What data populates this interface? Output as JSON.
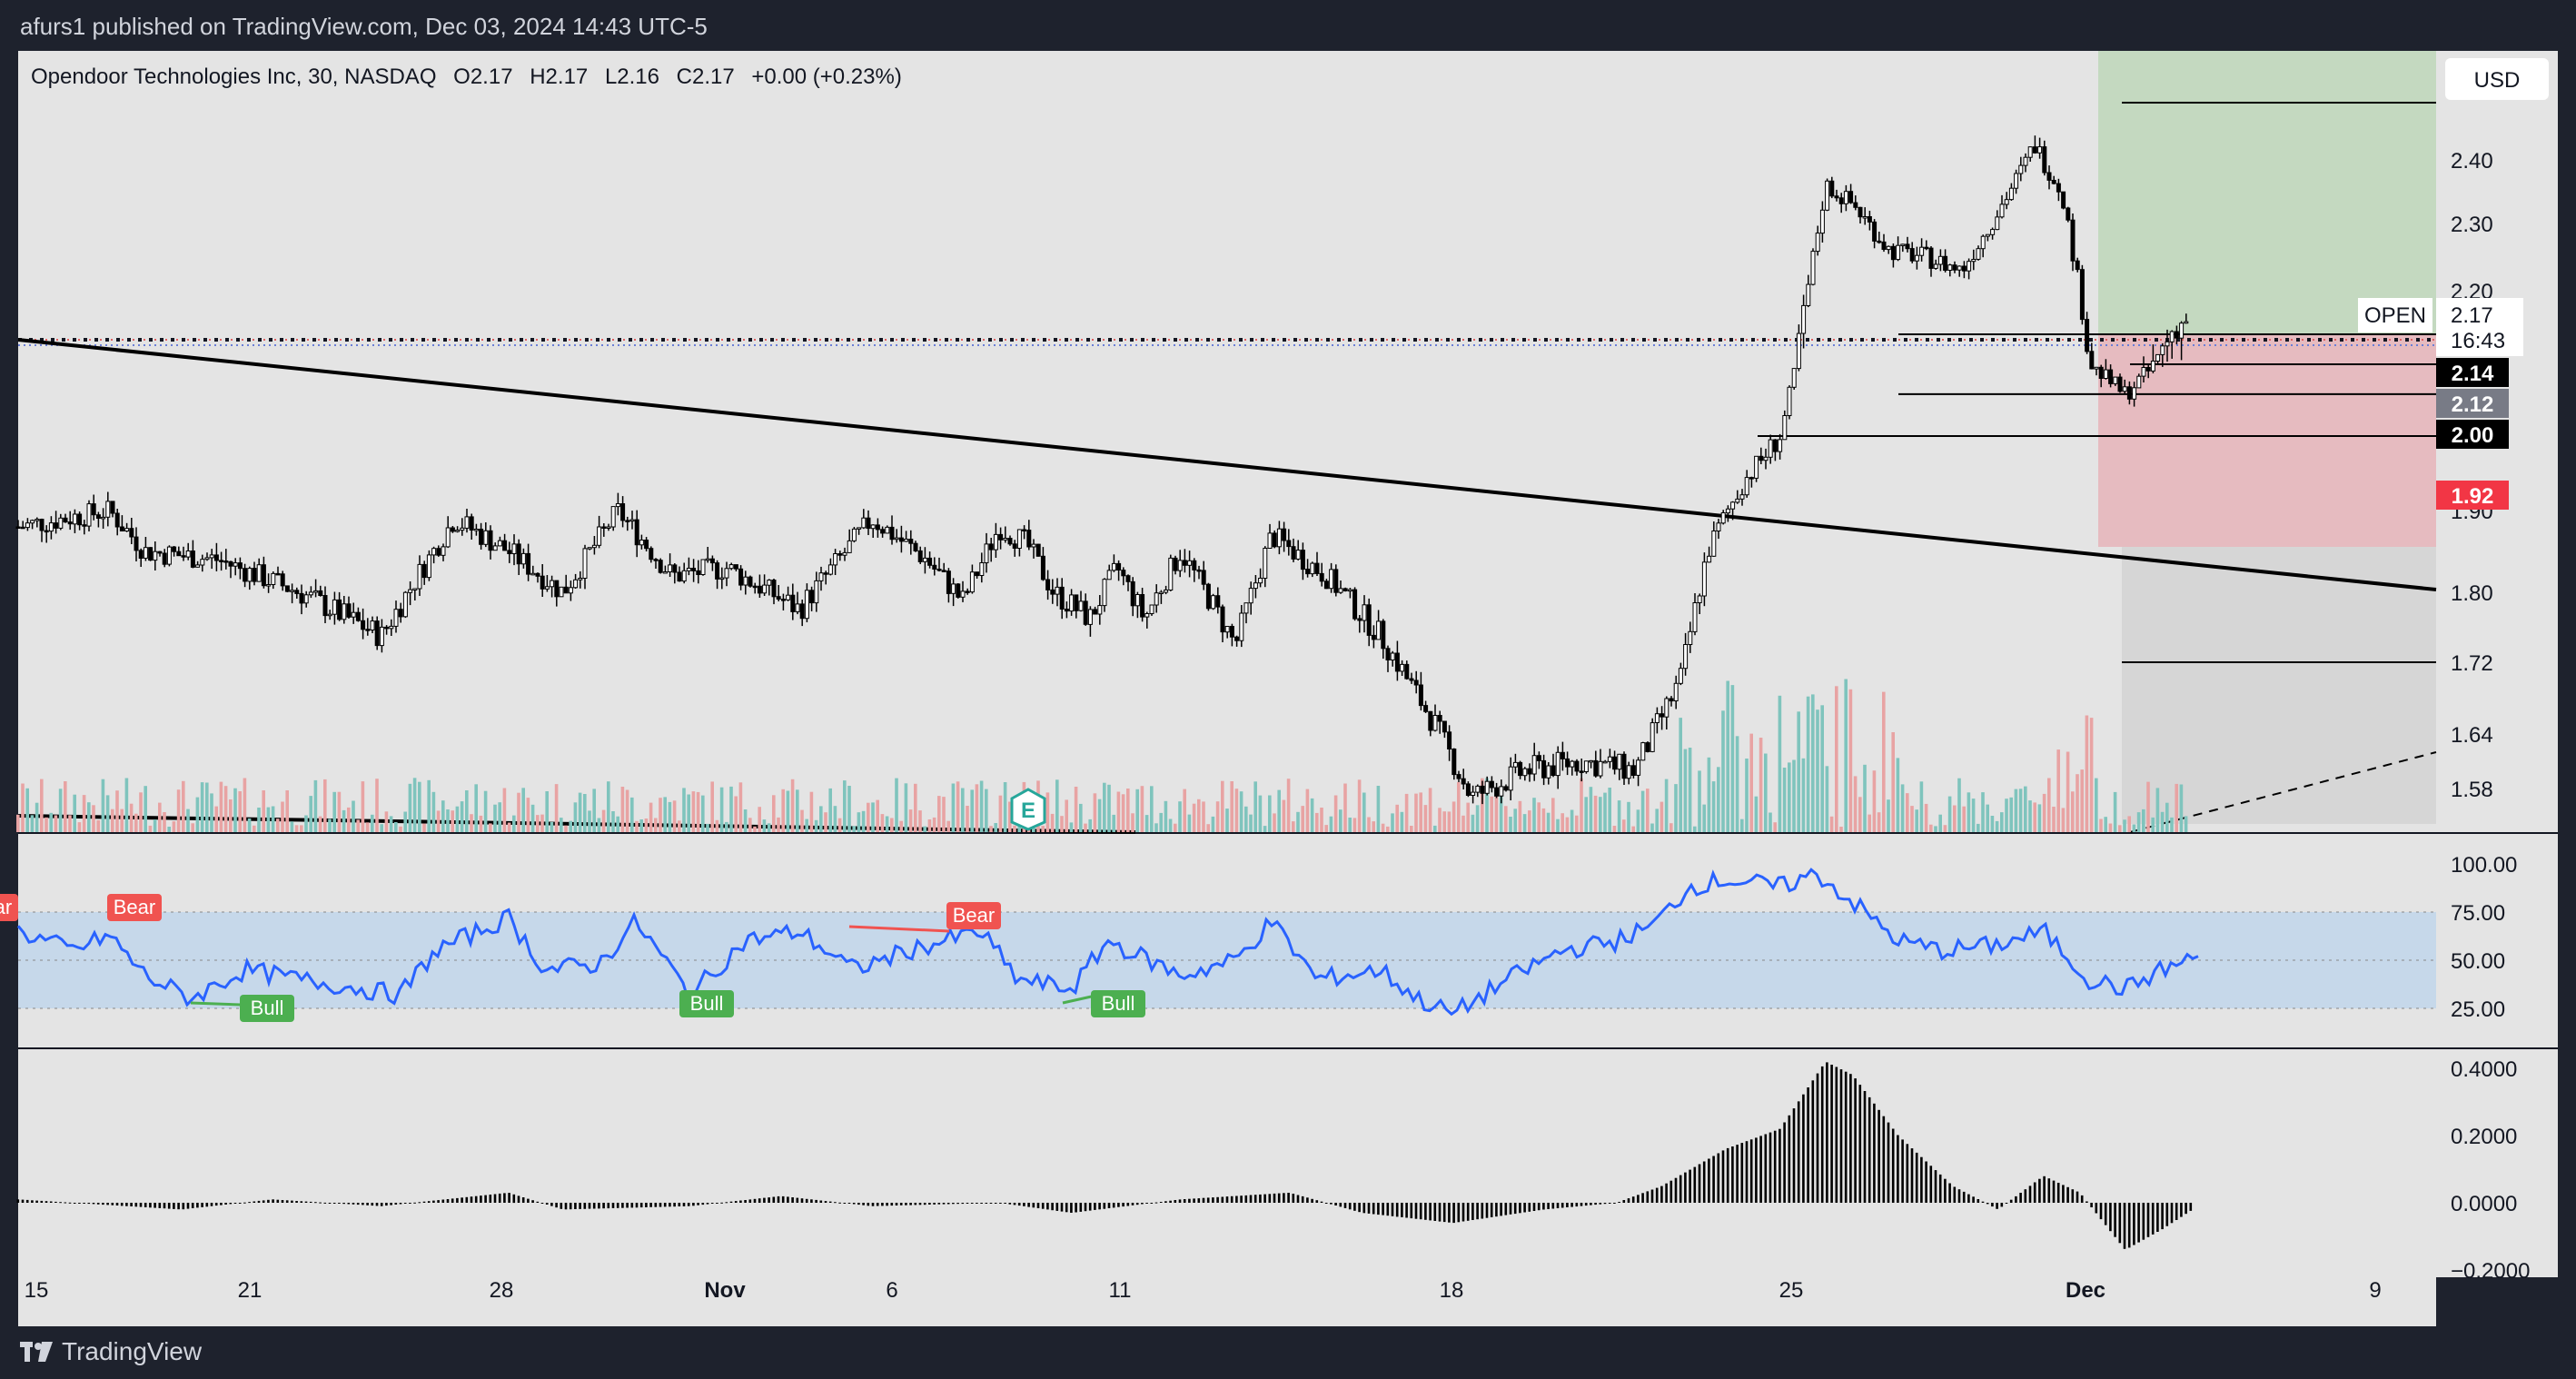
{
  "header": {
    "publisher": "afurs1 published on TradingView.com, Dec 03, 2024 14:43 UTC-5"
  },
  "footer": {
    "brand": "TradingView"
  },
  "chart_data": {
    "type": "candlestick",
    "symbol_legend": "Opendoor Technologies Inc, 30, NASDAQ",
    "ohlc_legend": {
      "o": "O2.17",
      "h": "H2.17",
      "l": "L2.16",
      "c": "C2.17",
      "chg": "+0.00 (+0.23%)"
    },
    "currency": "USD",
    "price_axis": {
      "ticks": [
        "2.40",
        "2.30",
        "2.20",
        "1.90",
        "1.80",
        "1.72",
        "1.64",
        "1.58"
      ],
      "range": [
        1.53,
        2.55
      ]
    },
    "time_axis": [
      "15",
      "21",
      "28",
      "Nov",
      "6",
      "11",
      "18",
      "25",
      "Dec",
      "9"
    ],
    "price_tags": {
      "open_label": "OPEN",
      "open_price": "2.17",
      "countdown": "16:43",
      "level_1": "2.14",
      "level_2": "2.12",
      "level_3": "2.00",
      "stop": "1.92"
    },
    "horizontal_levels": [
      2.47,
      2.14,
      2.12,
      2.07,
      2.0,
      1.72
    ],
    "trendline": {
      "from": [
        0,
        2.14
      ],
      "to": [
        1480,
        1.8
      ]
    },
    "position_tool": {
      "entry": 2.17,
      "target": 2.55,
      "stop": 1.92
    },
    "rsi": {
      "ticks": [
        "100.00",
        "75.00",
        "50.00",
        "25.00"
      ],
      "band": [
        30,
        70
      ],
      "labels": {
        "bear": "Bear",
        "bull": "Bull"
      }
    },
    "histogram": {
      "ticks": [
        "0.4000",
        "0.2000",
        "0.0000",
        "−0.2000"
      ]
    },
    "earnings_marker": "E",
    "colors": {
      "bg": "#e4e4e4",
      "up": "#ffffff",
      "down": "#000000",
      "vol_up": "#7fc4bd",
      "vol_down": "#e8a3a3",
      "rsi": "#2962ff",
      "bear": "#f05350",
      "bull": "#4caf50"
    }
  }
}
